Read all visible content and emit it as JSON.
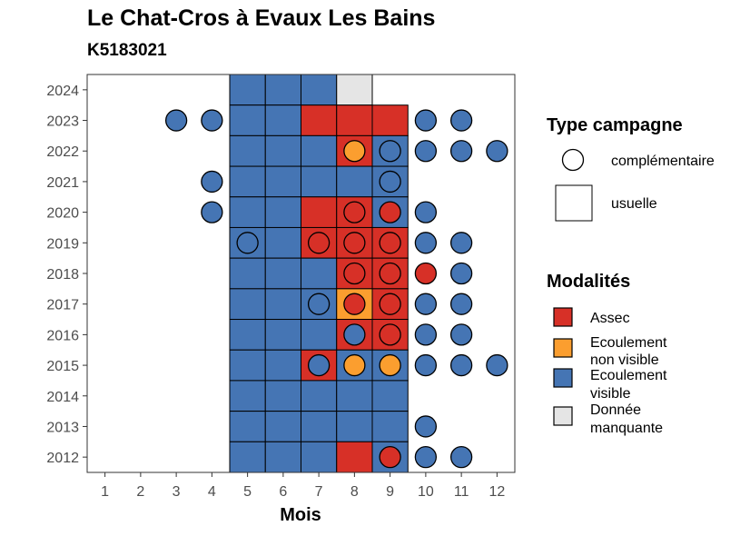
{
  "title": "Le Chat-Cros à Evaux Les Bains",
  "subtitle": "K5183021",
  "chart_data": {
    "type": "heatmap",
    "xlabel": "Mois",
    "ylabel": "",
    "x_ticks": [
      1,
      2,
      3,
      4,
      5,
      6,
      7,
      8,
      9,
      10,
      11,
      12
    ],
    "y_ticks": [
      2012,
      2013,
      2014,
      2015,
      2016,
      2017,
      2018,
      2019,
      2020,
      2021,
      2022,
      2023,
      2024
    ],
    "xlim": [
      0.5,
      12.5
    ],
    "ylim": [
      2011.5,
      2024.5
    ],
    "grid": false,
    "legend_type_title": "Type campagne",
    "legend_type": [
      {
        "key": "complementaire",
        "label": "complémentaire",
        "shape": "circle"
      },
      {
        "key": "usuelle",
        "label": "usuelle",
        "shape": "square"
      }
    ],
    "legend_mod_title": "Modalités",
    "legend_mod": [
      {
        "key": "A",
        "lines": [
          "Assec"
        ],
        "color": "#d73027"
      },
      {
        "key": "N",
        "lines": [
          "Ecoulement",
          "non visible"
        ],
        "color": "#fb9e2f"
      },
      {
        "key": "V",
        "lines": [
          "Ecoulement",
          "visible"
        ],
        "color": "#4575b4"
      },
      {
        "key": "M",
        "lines": [
          "Donnée",
          "manquante"
        ],
        "color": "#e5e5e5"
      }
    ],
    "usuelle": [
      {
        "year": 2024,
        "values": [
          "V",
          "V",
          "V",
          "M",
          "-"
        ]
      },
      {
        "year": 2023,
        "values": [
          "V",
          "V",
          "A",
          "A",
          "A"
        ]
      },
      {
        "year": 2022,
        "values": [
          "V",
          "V",
          "V",
          "A",
          "V"
        ]
      },
      {
        "year": 2021,
        "values": [
          "V",
          "V",
          "V",
          "V",
          "V"
        ]
      },
      {
        "year": 2020,
        "values": [
          "V",
          "V",
          "A",
          "A",
          "V"
        ]
      },
      {
        "year": 2019,
        "values": [
          "V",
          "V",
          "A",
          "A",
          "A"
        ]
      },
      {
        "year": 2018,
        "values": [
          "V",
          "V",
          "V",
          "A",
          "A"
        ]
      },
      {
        "year": 2017,
        "values": [
          "V",
          "V",
          "V",
          "N",
          "A"
        ]
      },
      {
        "year": 2016,
        "values": [
          "V",
          "V",
          "V",
          "A",
          "A"
        ]
      },
      {
        "year": 2015,
        "values": [
          "V",
          "V",
          "A",
          "V",
          "V"
        ]
      },
      {
        "year": 2014,
        "values": [
          "V",
          "V",
          "V",
          "V",
          "V"
        ]
      },
      {
        "year": 2013,
        "values": [
          "V",
          "V",
          "V",
          "V",
          "V"
        ]
      },
      {
        "year": 2012,
        "values": [
          "V",
          "V",
          "V",
          "A",
          "V"
        ]
      }
    ],
    "usuelle_months": [
      5,
      6,
      7,
      8,
      9
    ],
    "complementaire": [
      {
        "year": 2023,
        "month": 3,
        "value": "V"
      },
      {
        "year": 2023,
        "month": 4,
        "value": "V"
      },
      {
        "year": 2023,
        "month": 10,
        "value": "V"
      },
      {
        "year": 2023,
        "month": 11,
        "value": "V"
      },
      {
        "year": 2022,
        "month": 8,
        "value": "N"
      },
      {
        "year": 2022,
        "month": 9,
        "value": "V"
      },
      {
        "year": 2022,
        "month": 10,
        "value": "V"
      },
      {
        "year": 2022,
        "month": 11,
        "value": "V"
      },
      {
        "year": 2022,
        "month": 12,
        "value": "V"
      },
      {
        "year": 2021,
        "month": 4,
        "value": "V"
      },
      {
        "year": 2021,
        "month": 9,
        "value": "V"
      },
      {
        "year": 2020,
        "month": 4,
        "value": "V"
      },
      {
        "year": 2020,
        "month": 8,
        "value": "A"
      },
      {
        "year": 2020,
        "month": 9,
        "value": "A"
      },
      {
        "year": 2020,
        "month": 10,
        "value": "V"
      },
      {
        "year": 2019,
        "month": 5,
        "value": "V"
      },
      {
        "year": 2019,
        "month": 7,
        "value": "A"
      },
      {
        "year": 2019,
        "month": 8,
        "value": "A"
      },
      {
        "year": 2019,
        "month": 9,
        "value": "A"
      },
      {
        "year": 2019,
        "month": 10,
        "value": "V"
      },
      {
        "year": 2019,
        "month": 11,
        "value": "V"
      },
      {
        "year": 2018,
        "month": 8,
        "value": "A"
      },
      {
        "year": 2018,
        "month": 9,
        "value": "A"
      },
      {
        "year": 2018,
        "month": 10,
        "value": "A"
      },
      {
        "year": 2018,
        "month": 11,
        "value": "V"
      },
      {
        "year": 2017,
        "month": 7,
        "value": "V"
      },
      {
        "year": 2017,
        "month": 8,
        "value": "A"
      },
      {
        "year": 2017,
        "month": 9,
        "value": "A"
      },
      {
        "year": 2017,
        "month": 10,
        "value": "V"
      },
      {
        "year": 2017,
        "month": 11,
        "value": "V"
      },
      {
        "year": 2016,
        "month": 8,
        "value": "V"
      },
      {
        "year": 2016,
        "month": 9,
        "value": "A"
      },
      {
        "year": 2016,
        "month": 10,
        "value": "V"
      },
      {
        "year": 2016,
        "month": 11,
        "value": "V"
      },
      {
        "year": 2015,
        "month": 7,
        "value": "V"
      },
      {
        "year": 2015,
        "month": 8,
        "value": "N"
      },
      {
        "year": 2015,
        "month": 9,
        "value": "N"
      },
      {
        "year": 2015,
        "month": 10,
        "value": "V"
      },
      {
        "year": 2015,
        "month": 11,
        "value": "V"
      },
      {
        "year": 2015,
        "month": 12,
        "value": "V"
      },
      {
        "year": 2013,
        "month": 10,
        "value": "V"
      },
      {
        "year": 2012,
        "month": 9,
        "value": "A"
      },
      {
        "year": 2012,
        "month": 10,
        "value": "V"
      },
      {
        "year": 2012,
        "month": 11,
        "value": "V"
      }
    ]
  }
}
